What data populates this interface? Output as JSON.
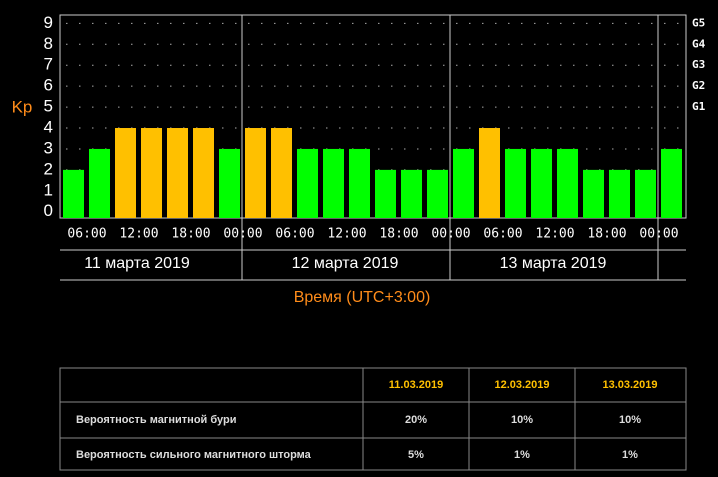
{
  "chart_data": {
    "type": "bar",
    "y_label": "Kp",
    "x_label": "Время (UTC+3:00)",
    "values": [
      2,
      3,
      4,
      4,
      4,
      4,
      3,
      4,
      4,
      3,
      3,
      3,
      2,
      2,
      2,
      3,
      4,
      3,
      3,
      3,
      2,
      2,
      2,
      3
    ],
    "colors": [
      "#00ff00",
      "#00ff00",
      "#ffc000",
      "#ffc000",
      "#ffc000",
      "#ffc000",
      "#00ff00",
      "#ffc000",
      "#ffc000",
      "#00ff00",
      "#00ff00",
      "#00ff00",
      "#00ff00",
      "#00ff00",
      "#00ff00",
      "#00ff00",
      "#ffc000",
      "#00ff00",
      "#00ff00",
      "#00ff00",
      "#00ff00",
      "#00ff00",
      "#00ff00",
      "#00ff00"
    ],
    "ylim": [
      -0.3,
      9.4
    ],
    "yticks": [
      0,
      1,
      2,
      3,
      4,
      5,
      6,
      7,
      8,
      9
    ],
    "right_ticks": [
      {
        "value": 5,
        "label": "G1"
      },
      {
        "value": 6,
        "label": "G2"
      },
      {
        "value": 7,
        "label": "G3"
      },
      {
        "value": 8,
        "label": "G4"
      },
      {
        "value": 9,
        "label": "G5"
      }
    ],
    "time_labels": [
      "06:00",
      "12:00",
      "18:00",
      "00:00",
      "06:00",
      "12:00",
      "18:00",
      "00:00",
      "06:00",
      "12:00",
      "18:00",
      "00:00"
    ],
    "days": [
      "11 марта 2019",
      "12 марта 2019",
      "13 марта 2019"
    ],
    "grid": true
  },
  "table": {
    "header": [
      "11.03.2019",
      "12.03.2019",
      "13.03.2019"
    ],
    "rows": [
      [
        "Вероятность магнитной бури",
        "20%",
        "10%",
        "10%"
      ],
      [
        "Вероятность сильного магнитного шторма",
        "5%",
        "1%",
        "1%"
      ]
    ]
  }
}
